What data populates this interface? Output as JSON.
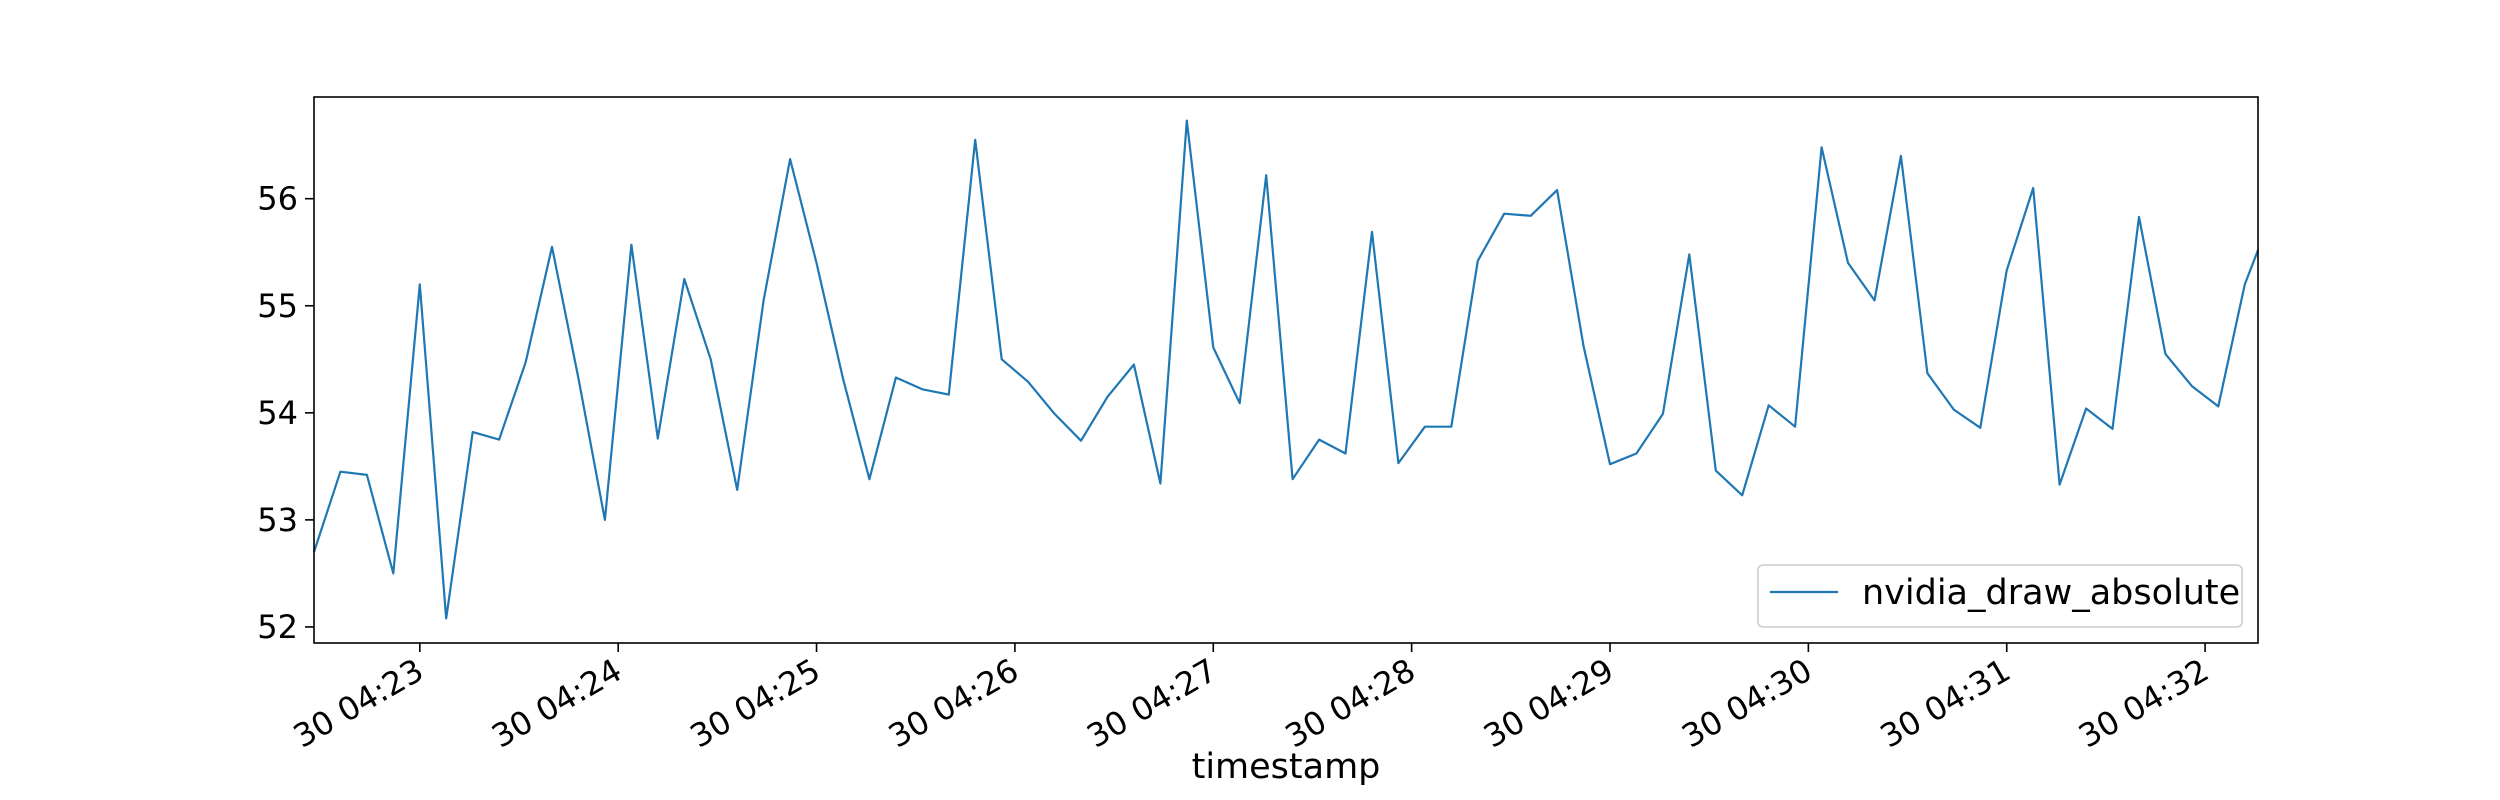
{
  "chart_data": {
    "type": "line",
    "title": "",
    "xlabel": "timestamp",
    "ylabel": "",
    "x_unit": "minutes",
    "xlim": [
      "04:22:28",
      "04:32:16"
    ],
    "ylim": [
      51.85,
      56.95
    ],
    "yticks": [
      52,
      53,
      54,
      55,
      56
    ],
    "xticks": [
      {
        "t": "04:23",
        "label": "30 04:23"
      },
      {
        "t": "04:24",
        "label": "30 04:24"
      },
      {
        "t": "04:25",
        "label": "30 04:25"
      },
      {
        "t": "04:26",
        "label": "30 04:26"
      },
      {
        "t": "04:27",
        "label": "30 04:27"
      },
      {
        "t": "04:28",
        "label": "30 04:28"
      },
      {
        "t": "04:29",
        "label": "30 04:29"
      },
      {
        "t": "04:30",
        "label": "30 04:30"
      },
      {
        "t": "04:31",
        "label": "30 04:31"
      },
      {
        "t": "04:32",
        "label": "30 04:32"
      }
    ],
    "grid": false,
    "legend_position": "lower-right",
    "series": [
      {
        "name": "nvidia_draw_absolute",
        "color": "#1f77b4",
        "x": [
          "04:22:28",
          "04:22:36",
          "04:22:44",
          "04:22:52",
          "04:23:00",
          "04:23:08",
          "04:23:16",
          "04:23:24",
          "04:23:32",
          "04:23:40",
          "04:23:48",
          "04:23:56",
          "04:24:04",
          "04:24:12",
          "04:24:20",
          "04:24:28",
          "04:24:36",
          "04:24:44",
          "04:24:52",
          "04:25:00",
          "04:25:08",
          "04:25:16",
          "04:25:24",
          "04:25:32",
          "04:25:40",
          "04:25:48",
          "04:25:56",
          "04:26:04",
          "04:26:12",
          "04:26:20",
          "04:26:28",
          "04:26:36",
          "04:26:44",
          "04:26:52",
          "04:27:00",
          "04:27:08",
          "04:27:16",
          "04:27:24",
          "04:27:32",
          "04:27:40",
          "04:27:48",
          "04:27:56",
          "04:28:04",
          "04:28:12",
          "04:28:20",
          "04:28:28",
          "04:28:36",
          "04:28:44",
          "04:28:52",
          "04:29:00",
          "04:29:08",
          "04:29:16",
          "04:29:24",
          "04:29:32",
          "04:29:40",
          "04:29:48",
          "04:29:56",
          "04:30:04",
          "04:30:12",
          "04:30:20",
          "04:30:28",
          "04:30:36",
          "04:30:44",
          "04:30:52",
          "04:31:00",
          "04:31:08",
          "04:31:16",
          "04:31:24",
          "04:31:32",
          "04:31:40",
          "04:31:48",
          "04:31:56",
          "04:32:04",
          "04:32:12",
          "04:32:16"
        ],
        "y": [
          52.7,
          53.45,
          53.42,
          52.5,
          55.2,
          52.08,
          53.82,
          53.75,
          54.47,
          55.55,
          54.32,
          53.0,
          55.57,
          53.76,
          55.25,
          54.5,
          53.28,
          55.05,
          56.37,
          55.4,
          54.32,
          53.38,
          54.33,
          54.22,
          54.17,
          56.55,
          54.5,
          54.29,
          53.99,
          53.74,
          54.15,
          54.45,
          53.34,
          56.73,
          54.61,
          54.09,
          56.22,
          53.38,
          53.75,
          53.62,
          55.69,
          53.53,
          53.87,
          53.87,
          55.42,
          55.86,
          55.84,
          56.08,
          54.62,
          53.52,
          53.62,
          53.99,
          55.48,
          53.46,
          53.23,
          54.07,
          53.87,
          56.48,
          55.4,
          55.05,
          56.4,
          54.37,
          54.03,
          53.86,
          55.33,
          56.1,
          53.33,
          54.04,
          53.85,
          55.83,
          54.55,
          54.25,
          54.06,
          55.2,
          55.52
        ]
      }
    ]
  }
}
